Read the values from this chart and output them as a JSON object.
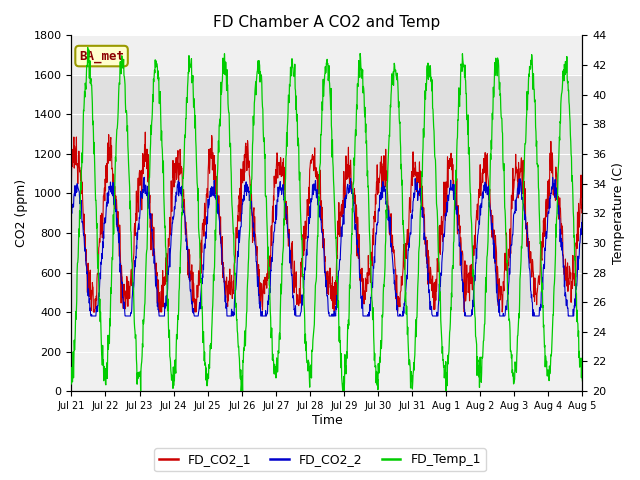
{
  "title": "FD Chamber A CO2 and Temp",
  "xlabel": "Time",
  "ylabel_left": "CO2 (ppm)",
  "ylabel_right": "Temperature (C)",
  "ylim_left": [
    0,
    1800
  ],
  "ylim_right": [
    20,
    44
  ],
  "background_color": "#ffffff",
  "plot_bg_color": "#f0f0f0",
  "shade_band": [
    400,
    1600
  ],
  "shade_color": "#e0e0e0",
  "legend_labels": [
    "FD_CO2_1",
    "FD_CO2_2",
    "FD_Temp_1"
  ],
  "legend_colors": [
    "#cc0000",
    "#0000cc",
    "#00cc00"
  ],
  "ba_met_label": "BA_met",
  "xtick_labels": [
    "Jul 21",
    "Jul 22",
    "Jul 23",
    "Jul 24",
    "Jul 25",
    "Jul 26",
    "Jul 27",
    "Jul 28",
    "Jul 29",
    "Jul 30",
    "Jul 31",
    "Aug 1",
    "Aug 2",
    "Aug 3",
    "Aug 4",
    "Aug 5"
  ],
  "n_days": 15,
  "points_per_day": 96
}
